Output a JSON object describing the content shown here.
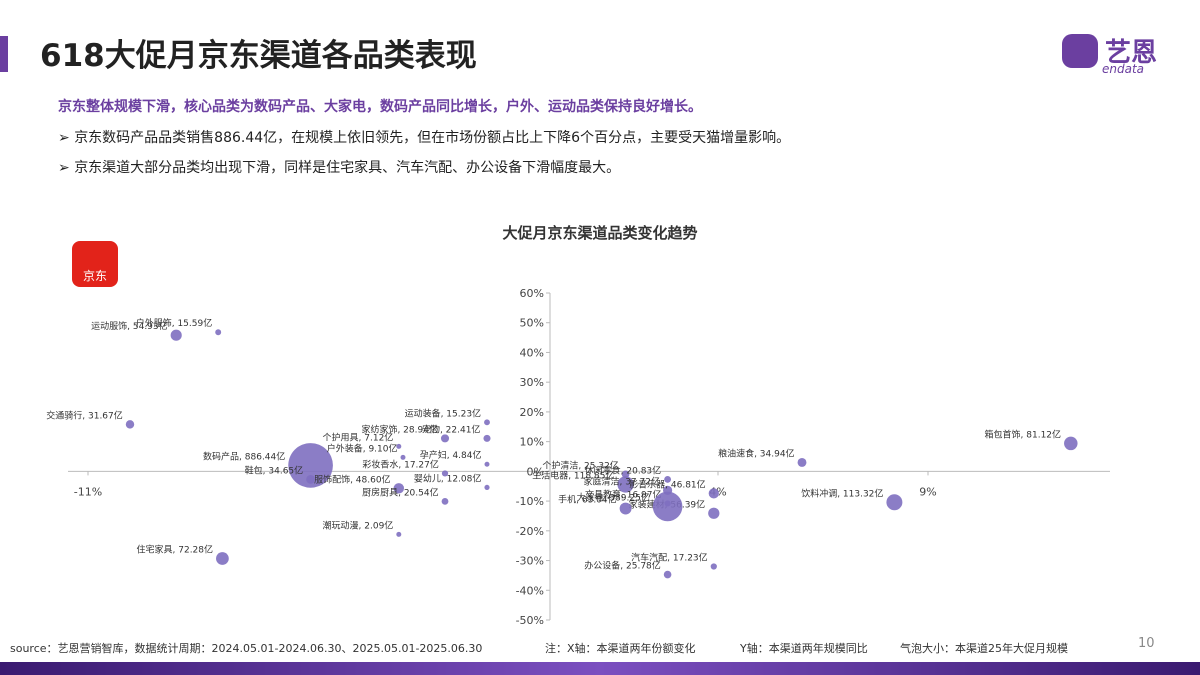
{
  "header": {
    "title": "618大促月京东渠道各品类表现",
    "logo_cn": "艺恩",
    "logo_en": "endata"
  },
  "summary": "京东整体规模下滑，核心品类为数码产品、大家电，数码产品同比增长，户外、运动品类保持良好增长。",
  "bullets": [
    "京东数码产品品类销售886.44亿，在规模上依旧领先，但在市场份额占比上下降6个百分点，主要受天猫增量影响。",
    "京东渠道大部分品类均出现下滑，同样是住宅家具、汽车汽配、办公设备下滑幅度最大。"
  ],
  "badge": "京东",
  "chart_data": {
    "type": "bubble",
    "title": "大促月京东渠道品类变化趋势",
    "color": "#7e6fc0",
    "xlim": [
      -11,
      13
    ],
    "ylim": [
      -50,
      60
    ],
    "xticks": [
      {
        "value": -11,
        "label": "-11%"
      },
      {
        "value": 4,
        "label": "4%"
      },
      {
        "value": 9,
        "label": "9%"
      }
    ],
    "yticks": [
      {
        "value": -50,
        "label": "-50%"
      },
      {
        "value": -40,
        "label": "-40%"
      },
      {
        "value": -30,
        "label": "-30%"
      },
      {
        "value": -20,
        "label": "-20%"
      },
      {
        "value": -10,
        "label": "-10%"
      },
      {
        "value": 0,
        "label": "0%"
      },
      {
        "value": 10,
        "label": "10%"
      },
      {
        "value": 20,
        "label": "20%"
      },
      {
        "value": 30,
        "label": "30%"
      },
      {
        "value": 40,
        "label": "40%"
      },
      {
        "value": 50,
        "label": "50%"
      },
      {
        "value": 60,
        "label": "60%"
      }
    ],
    "points": [
      {
        "label": "户外服饰, 15.59亿",
        "x": -7.9,
        "y": 46.8,
        "size": 15.59
      },
      {
        "label": "运动服饰, 54.93亿",
        "x": -8.9,
        "y": 45.8,
        "size": 54.93
      },
      {
        "label": "交通骑行, 31.67亿",
        "x": -10.0,
        "y": 15.8,
        "size": 31.67
      },
      {
        "label": "数码产品, 886.44亿",
        "x": -5.7,
        "y": 2.0,
        "size": 886.44
      },
      {
        "label": "个护用具, 7.12亿",
        "x": -3.6,
        "y": 8.4,
        "size": 7.12
      },
      {
        "label": "家纺家饰, 28.94亿",
        "x": -2.5,
        "y": 11.1,
        "size": 28.94
      },
      {
        "label": "户外装备, 9.10亿",
        "x": -3.5,
        "y": 4.7,
        "size": 9.1
      },
      {
        "label": "鞋包, 34.65亿",
        "x": -5.7,
        "y": -2.7,
        "size": 34.65
      },
      {
        "label": "服饰配饰, 48.60亿",
        "x": -3.6,
        "y": -5.7,
        "size": 48.6
      },
      {
        "label": "彩妆香水, 17.27亿",
        "x": -2.5,
        "y": -0.7,
        "size": 17.27
      },
      {
        "label": "运动装备, 15.23亿",
        "x": -1.5,
        "y": 16.5,
        "size": 15.23
      },
      {
        "label": "宠物, 22.41亿",
        "x": -1.5,
        "y": 11.1,
        "size": 22.41
      },
      {
        "label": "孕产妇, 4.84亿",
        "x": -1.5,
        "y": 2.4,
        "size": 4.84
      },
      {
        "label": "婴幼儿, 12.08亿",
        "x": -1.5,
        "y": -5.4,
        "size": 12.08
      },
      {
        "label": "厨房厨具, 20.54亿",
        "x": -2.5,
        "y": -10.1,
        "size": 20.54
      },
      {
        "label": "潮玩动漫, 2.09亿",
        "x": -3.6,
        "y": -21.2,
        "size": 2.09
      },
      {
        "label": "住宅家具, 72.28亿",
        "x": -7.8,
        "y": -29.3,
        "size": 72.28
      },
      {
        "label": "生活电器, 118.85亿",
        "x": 1.8,
        "y": -4.4,
        "size": 118.85
      },
      {
        "label": "个护清洁, 25.32亿",
        "x": 1.8,
        "y": -1.0,
        "size": 25.32
      },
      {
        "label": "休闲零食, 20.83亿",
        "x": 2.8,
        "y": -2.7,
        "size": 20.83
      },
      {
        "label": "粮油速食, 34.94亿",
        "x": 6.0,
        "y": 3.0,
        "size": 34.94
      },
      {
        "label": "家庭清洁, 37.72亿",
        "x": 2.8,
        "y": -6.4,
        "size": 37.72
      },
      {
        "label": "影音乐器, 46.81亿",
        "x": 3.9,
        "y": -7.4,
        "size": 46.81
      },
      {
        "label": "家装建材, 56.39亿",
        "x": 3.9,
        "y": -14.1,
        "size": 56.39
      },
      {
        "label": "手机, 63.04亿",
        "x": 1.8,
        "y": -12.5,
        "size": 63.04
      },
      {
        "label": "文具教育, 16.97亿",
        "x": 2.8,
        "y": -10.8,
        "size": 16.97
      },
      {
        "label": "大家电, 389.25亿",
        "x": 2.8,
        "y": -11.8,
        "size": 389.25
      },
      {
        "label": "饮料冲调, 113.32亿",
        "x": 8.2,
        "y": -10.4,
        "size": 113.32
      },
      {
        "label": "箱包首饰, 81.12亿",
        "x": 12.4,
        "y": 9.4,
        "size": 81.12
      },
      {
        "label": "汽车汽配, 17.23亿",
        "x": 3.9,
        "y": -32.0,
        "size": 17.23
      },
      {
        "label": "办公设备, 25.78亿",
        "x": 2.8,
        "y": -34.7,
        "size": 25.78
      }
    ]
  },
  "footer": {
    "source": "source：艺恩营销智库，数据统计周期：2024.05.01-2024.06.30、2025.05.01-2025.06.30",
    "note_x": "注：X轴：本渠道两年份额变化",
    "note_y": "Y轴：本渠道两年规模同比",
    "note_size": "气泡大小：本渠道25年大促月规模",
    "page": "10"
  }
}
